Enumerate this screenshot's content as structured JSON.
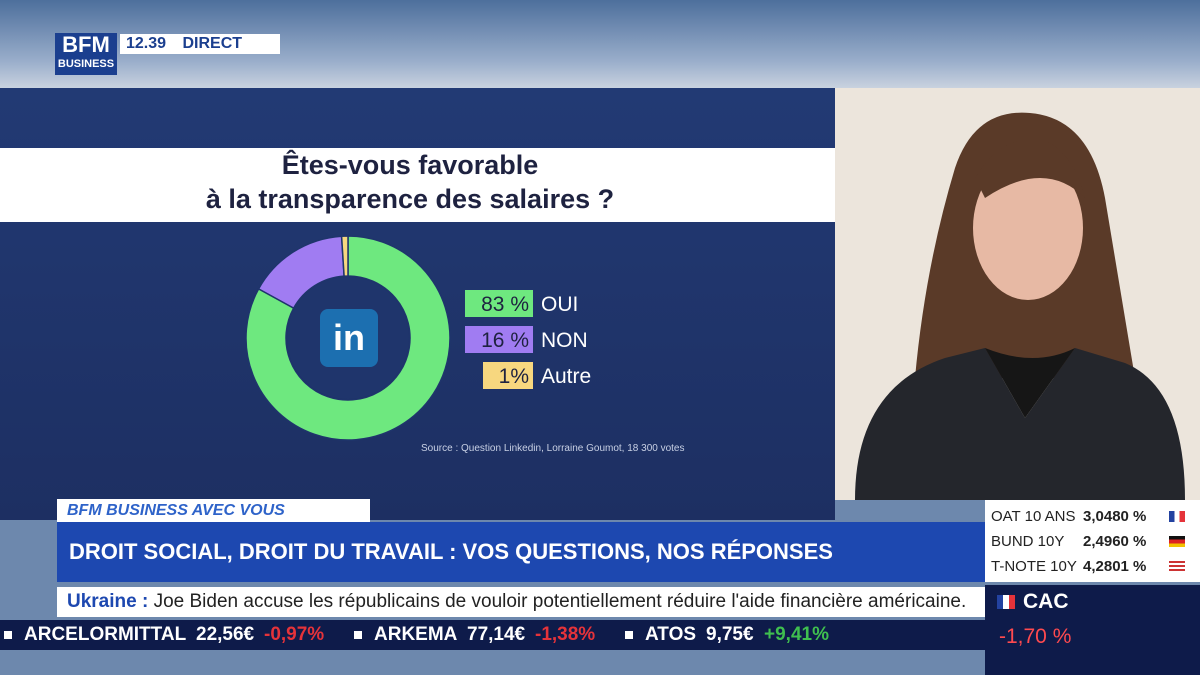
{
  "broadcast": {
    "logo_top": "BFM",
    "logo_bottom": "BUSINESS",
    "time": "12.39",
    "live": "DIRECT",
    "program": "BFM BUSINESS AVEC VOUS",
    "headline": "DROIT SOCIAL, DROIT DU TRAVAIL : VOS QUESTIONS, NOS RÉPONSES",
    "news_topic": "Ukraine :",
    "news_text": "Joe Biden accuse les républicains de vouloir potentiellement réduire l'aide financière américaine.",
    "ticker": [
      {
        "name": "ARCELORMITTAL",
        "price": "22,56€",
        "change": "-0,97%",
        "color": "#e5333a"
      },
      {
        "name": "ARKEMA",
        "price": "77,14€",
        "change": "-1,38%",
        "color": "#e5333a"
      },
      {
        "name": "ATOS",
        "price": "9,75€",
        "change": "+9,41%",
        "color": "#3fbf4f"
      }
    ],
    "rates": [
      {
        "name": "OAT 10 ANS",
        "value": "3,0480 %"
      },
      {
        "name": "BUND 10Y",
        "value": "2,4960 %"
      },
      {
        "name": "T-NOTE 10Y",
        "value": "4,2801 %"
      }
    ],
    "index": {
      "name": "CAC",
      "change": "-1,70 %"
    }
  },
  "chart_data": {
    "type": "pie",
    "title": [
      "Êtes-vous favorable",
      "à la transparence des salaires ?"
    ],
    "categories": [
      "OUI",
      "NON",
      "Autre"
    ],
    "values": [
      83,
      16,
      1
    ],
    "value_labels": [
      "83 %",
      "16 %",
      "1%"
    ],
    "colors": [
      "#6ee87f",
      "#a07cf2",
      "#f7d77f"
    ],
    "center_label": "in",
    "source": "Source : Question Linkedin, Lorraine Goumot, 18 300 votes"
  }
}
